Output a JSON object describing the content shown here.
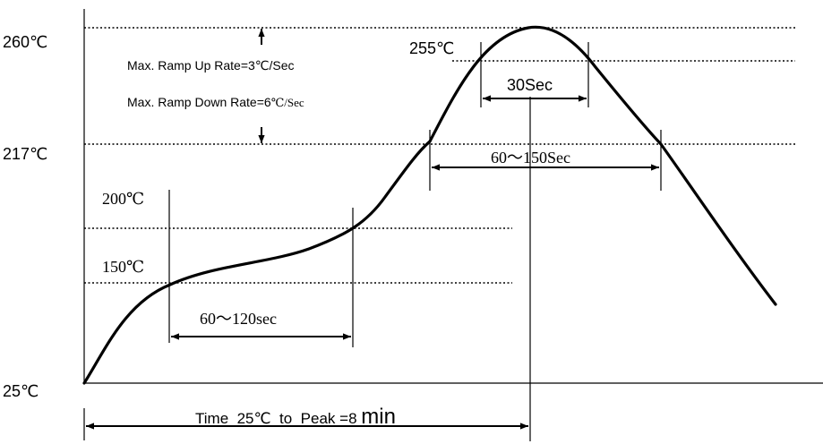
{
  "axis_labels": {
    "t260": "260℃",
    "t217": "217℃",
    "t25": "25℃"
  },
  "inner_labels": {
    "t255": "255℃",
    "t200": "200℃",
    "t150": "150℃"
  },
  "notes": {
    "ramp_up": "Max. Ramp Up Rate=3℃/Sec",
    "ramp_down_main": "Max. Ramp Down Rate=6",
    "ramp_down_unit": "℃/Sec"
  },
  "durations": {
    "peak_window": "30Sec",
    "above_217": "60～150Sec",
    "soak": "60～120sec",
    "time_to_peak_prefix": "Time  25℃  to  Peak =8 ",
    "time_to_peak_unit": "min"
  },
  "colors": {
    "line": "#000000",
    "background": "#ffffff"
  }
}
